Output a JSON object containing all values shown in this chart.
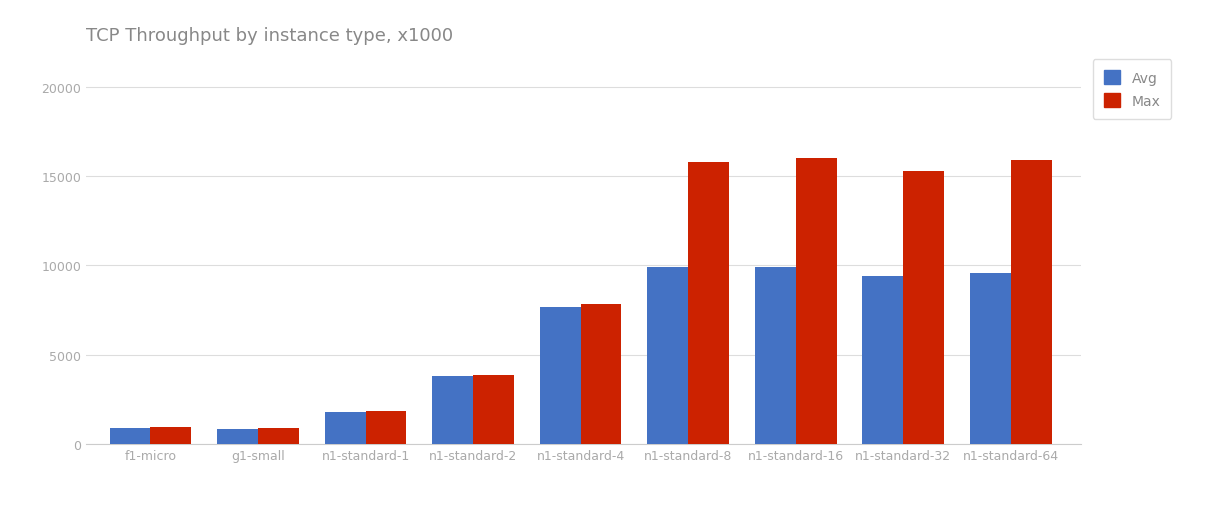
{
  "title": "TCP Throughput by instance type, x1000",
  "categories": [
    "f1-micro",
    "g1-small",
    "n1-standard-1",
    "n1-standard-2",
    "n1-standard-4",
    "n1-standard-8",
    "n1-standard-16",
    "n1-standard-32",
    "n1-standard-64"
  ],
  "avg_values": [
    900,
    880,
    1800,
    3800,
    7700,
    9900,
    9900,
    9400,
    9600
  ],
  "max_values": [
    950,
    900,
    1870,
    3900,
    7820,
    15800,
    16000,
    15300,
    15900
  ],
  "avg_color": "#4472C4",
  "max_color": "#CC2200",
  "background_color": "#ffffff",
  "grid_color": "#dddddd",
  "ylim": [
    0,
    21500
  ],
  "yticks": [
    0,
    5000,
    10000,
    15000,
    20000
  ],
  "bar_width": 0.38,
  "legend_labels": [
    "Avg",
    "Max"
  ],
  "title_fontsize": 13,
  "tick_fontsize": 9,
  "legend_fontsize": 10,
  "title_color": "#888888",
  "tick_color": "#aaaaaa",
  "legend_text_color": "#888888"
}
